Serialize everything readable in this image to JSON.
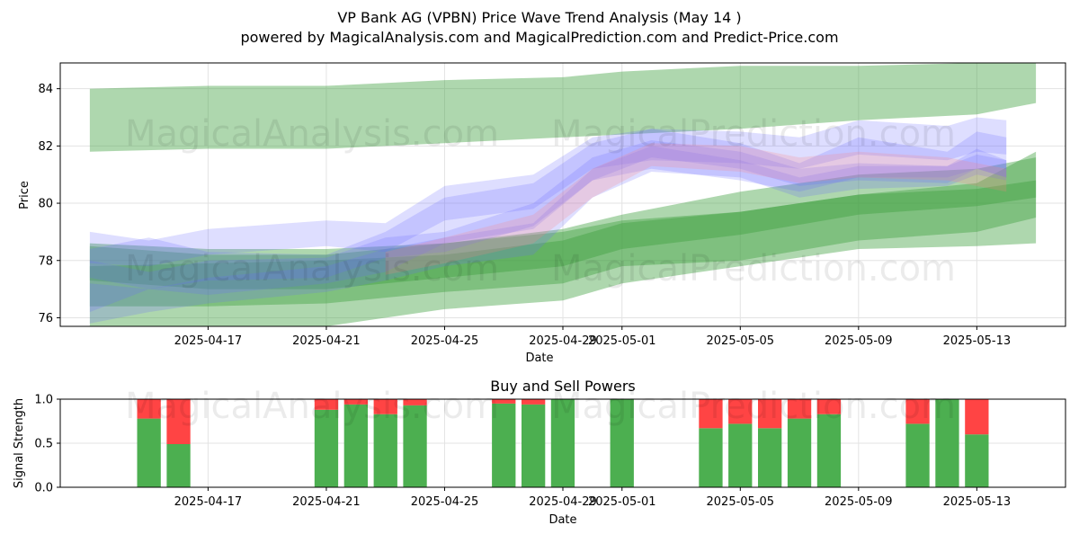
{
  "header": {
    "title": "VP Bank AG (VPBN) Price Wave Trend Analysis (May 14 )",
    "subtitle": "powered by MagicalAnalysis.com and MagicalPrediction.com and Predict-Price.com"
  },
  "watermarks": [
    "MagicalAnalysis.com",
    "MagicalPrediction.com"
  ],
  "colors": {
    "green_band": "#3f9f3f",
    "blue_wave": "#6a6aff",
    "red_wave": "#ff8080",
    "buy": "#4caf50",
    "sell": "#ff4444"
  },
  "chart_data": [
    {
      "type": "area",
      "title": "",
      "xlabel": "Date",
      "ylabel": "Price",
      "x_range": [
        "2025-04-12",
        "2025-05-16"
      ],
      "ylim": [
        75.7,
        84.9
      ],
      "yticks": [
        76,
        78,
        80,
        82,
        84
      ],
      "xticks": [
        "2025-04-17",
        "2025-04-21",
        "2025-04-25",
        "2025-04-29",
        "2025-05-01",
        "2025-05-05",
        "2025-05-09",
        "2025-05-13"
      ],
      "grid": true,
      "series": [
        {
          "kind": "band",
          "x": [
            "2025-04-13",
            "2025-04-17",
            "2025-04-21",
            "2025-04-25",
            "2025-04-29",
            "2025-05-01",
            "2025-05-05",
            "2025-05-09",
            "2025-05-13",
            "2025-05-15"
          ],
          "upper": [
            84.0,
            84.1,
            84.1,
            84.3,
            84.4,
            84.6,
            84.8,
            84.8,
            84.9,
            84.9
          ],
          "lower": [
            81.8,
            81.9,
            81.9,
            82.1,
            82.3,
            82.4,
            82.6,
            82.9,
            83.1,
            83.5
          ]
        },
        {
          "kind": "band",
          "x": [
            "2025-04-13",
            "2025-04-17",
            "2025-04-21",
            "2025-04-25",
            "2025-04-29",
            "2025-05-01",
            "2025-05-05",
            "2025-05-09",
            "2025-05-13",
            "2025-05-15"
          ],
          "upper": [
            78.6,
            78.4,
            78.4,
            78.6,
            79.0,
            79.4,
            79.7,
            80.3,
            80.7,
            81.8
          ],
          "lower": [
            75.5,
            75.6,
            75.7,
            76.3,
            76.6,
            77.2,
            77.8,
            78.4,
            78.5,
            78.6
          ]
        },
        {
          "kind": "band",
          "x": [
            "2025-04-13",
            "2025-04-17",
            "2025-04-21",
            "2025-04-25",
            "2025-04-29",
            "2025-05-01",
            "2025-05-05",
            "2025-05-09",
            "2025-05-13",
            "2025-05-15"
          ],
          "upper": [
            77.8,
            77.9,
            78.0,
            78.2,
            78.7,
            79.3,
            79.7,
            80.3,
            80.5,
            80.8
          ],
          "lower": [
            76.4,
            76.4,
            76.5,
            76.9,
            77.2,
            77.8,
            78.0,
            78.7,
            79.0,
            79.5
          ]
        },
        {
          "kind": "band",
          "x": [
            "2025-04-13",
            "2025-04-17",
            "2025-04-21",
            "2025-04-25",
            "2025-04-29",
            "2025-05-01",
            "2025-05-05",
            "2025-05-09",
            "2025-05-13",
            "2025-05-15"
          ],
          "upper": [
            78.5,
            78.2,
            78.2,
            78.6,
            79.1,
            79.6,
            80.4,
            81.0,
            81.2,
            81.6
          ],
          "lower": [
            77.3,
            77.0,
            77.0,
            77.4,
            77.8,
            78.4,
            78.9,
            79.6,
            79.9,
            80.2
          ]
        },
        {
          "kind": "wave",
          "x": [
            "2025-04-13",
            "2025-04-15",
            "2025-04-17",
            "2025-04-21",
            "2025-04-23",
            "2025-04-25",
            "2025-04-28",
            "2025-04-30",
            "2025-05-02",
            "2025-05-05",
            "2025-05-07",
            "2025-05-09",
            "2025-05-12",
            "2025-05-13",
            "2025-05-14"
          ],
          "upper": [
            78.4,
            78.8,
            78.3,
            78.2,
            79.0,
            80.2,
            80.7,
            82.1,
            82.6,
            82.1,
            81.4,
            82.3,
            81.8,
            82.5,
            82.3
          ],
          "lower": [
            76.2,
            77.0,
            76.8,
            77.2,
            77.6,
            78.6,
            79.1,
            80.8,
            81.2,
            80.8,
            80.4,
            80.9,
            80.9,
            81.2,
            80.9
          ]
        },
        {
          "kind": "wave",
          "x": [
            "2025-04-13",
            "2025-04-15",
            "2025-04-17",
            "2025-04-21",
            "2025-04-23",
            "2025-04-25",
            "2025-04-28",
            "2025-04-30",
            "2025-05-02",
            "2025-05-05",
            "2025-05-07",
            "2025-05-09",
            "2025-05-12",
            "2025-05-13",
            "2025-05-14"
          ],
          "upper": [
            77.2,
            77.0,
            77.4,
            77.8,
            78.4,
            78.8,
            79.3,
            81.2,
            82.0,
            81.5,
            80.9,
            81.3,
            81.3,
            81.7,
            81.5
          ],
          "lower": [
            75.8,
            76.2,
            76.5,
            76.9,
            77.3,
            77.8,
            78.2,
            80.2,
            81.1,
            80.9,
            80.2,
            80.5,
            80.6,
            81.0,
            80.8
          ]
        },
        {
          "kind": "wave",
          "x": [
            "2025-04-13",
            "2025-04-15",
            "2025-04-17",
            "2025-04-21",
            "2025-04-23",
            "2025-04-25",
            "2025-04-28",
            "2025-04-30",
            "2025-05-02",
            "2025-05-05",
            "2025-05-07",
            "2025-05-09",
            "2025-05-12",
            "2025-05-13",
            "2025-05-14"
          ],
          "upper": [
            79.0,
            78.7,
            79.1,
            79.4,
            79.3,
            80.6,
            81.0,
            82.3,
            82.6,
            82.5,
            82.3,
            82.9,
            82.7,
            83.0,
            82.9
          ],
          "lower": [
            77.9,
            77.8,
            78.2,
            78.5,
            78.3,
            79.4,
            79.8,
            81.2,
            81.5,
            81.4,
            81.2,
            81.7,
            81.5,
            81.8,
            81.7
          ]
        },
        {
          "kind": "wave",
          "x": [
            "2025-04-13",
            "2025-04-15",
            "2025-04-17",
            "2025-04-21",
            "2025-04-23",
            "2025-04-25",
            "2025-04-28",
            "2025-04-30",
            "2025-05-02",
            "2025-05-05",
            "2025-05-07",
            "2025-05-09",
            "2025-05-12",
            "2025-05-13",
            "2025-05-14"
          ],
          "upper": [
            78.0,
            77.6,
            78.0,
            78.1,
            78.8,
            79.0,
            80.0,
            81.6,
            82.2,
            81.8,
            81.2,
            81.4,
            81.3,
            81.9,
            81.5
          ],
          "lower": [
            77.4,
            77.0,
            77.3,
            77.4,
            78.1,
            78.3,
            79.2,
            80.8,
            81.6,
            81.2,
            80.6,
            80.8,
            80.7,
            81.2,
            80.9
          ]
        },
        {
          "kind": "wave_red",
          "x": [
            "2025-04-23",
            "2025-04-25",
            "2025-04-28",
            "2025-04-30",
            "2025-05-02",
            "2025-05-05",
            "2025-05-07",
            "2025-05-09",
            "2025-05-12",
            "2025-05-14"
          ],
          "upper": [
            78.3,
            78.8,
            79.6,
            81.2,
            82.1,
            82.0,
            81.6,
            81.8,
            81.6,
            81.2
          ],
          "lower": [
            77.5,
            77.9,
            78.6,
            80.2,
            81.3,
            81.1,
            80.7,
            80.9,
            80.8,
            80.4
          ]
        }
      ]
    },
    {
      "type": "bar",
      "title": "Buy and Sell Powers",
      "xlabel": "Date",
      "ylabel": "Signal Strength",
      "ylim": [
        0,
        1
      ],
      "yticks": [
        "0.0",
        "0.5",
        "1.0"
      ],
      "xticks": [
        "2025-04-17",
        "2025-04-21",
        "2025-04-25",
        "2025-04-29",
        "2025-05-01",
        "2025-05-05",
        "2025-05-09",
        "2025-05-13"
      ],
      "categories": [
        "2025-04-15",
        "2025-04-16",
        "2025-04-21",
        "2025-04-22",
        "2025-04-23",
        "2025-04-24",
        "2025-04-27",
        "2025-04-28",
        "2025-04-29",
        "2025-05-01",
        "2025-05-04",
        "2025-05-05",
        "2025-05-06",
        "2025-05-07",
        "2025-05-08",
        "2025-05-11",
        "2025-05-12",
        "2025-05-13"
      ],
      "series": [
        {
          "name": "Buy",
          "values": [
            0.78,
            0.49,
            0.88,
            0.94,
            0.83,
            0.93,
            0.95,
            0.94,
            1.0,
            1.0,
            0.67,
            0.72,
            0.67,
            0.78,
            0.83,
            0.72,
            1.0,
            0.6
          ]
        },
        {
          "name": "Sell",
          "values": [
            0.22,
            0.51,
            0.12,
            0.06,
            0.17,
            0.07,
            0.05,
            0.06,
            0.0,
            0.0,
            0.33,
            0.28,
            0.33,
            0.22,
            0.17,
            0.28,
            0.0,
            0.4
          ]
        }
      ]
    }
  ]
}
